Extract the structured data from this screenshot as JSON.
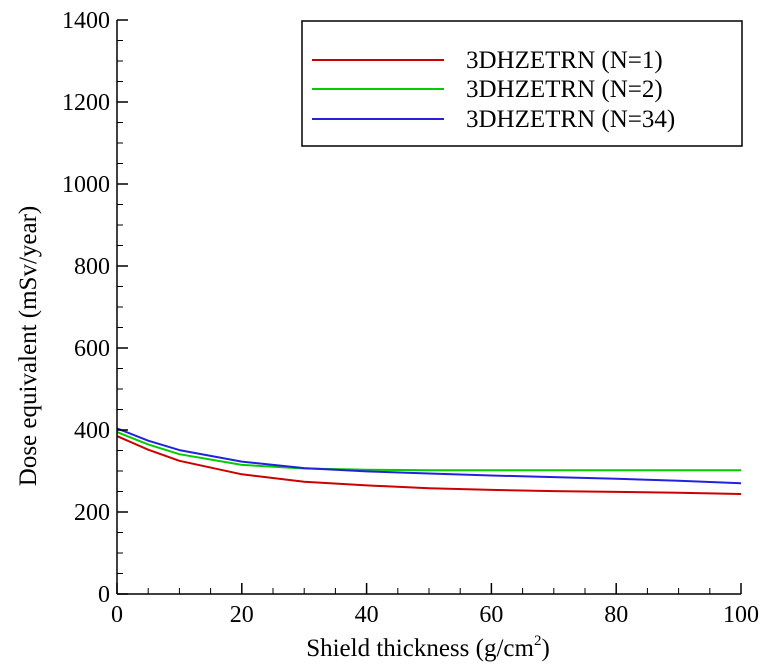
{
  "chart_data": {
    "type": "line",
    "xlabel": "Shield thickness (g/cm",
    "xlabel_sup": "2",
    "xlabel_end": ")",
    "ylabel": "Dose equivalent (mSv/year)",
    "xlim": [
      0,
      100
    ],
    "ylim": [
      0,
      1400
    ],
    "x_ticks": [
      0,
      20,
      40,
      60,
      80,
      100
    ],
    "y_ticks": [
      0,
      200,
      400,
      600,
      800,
      1000,
      1200,
      1400
    ],
    "grid": false,
    "legend_position": "top-right",
    "series": [
      {
        "name": "3DHZETRN (N=1)",
        "color": "#cc0000",
        "x": [
          0,
          5,
          10,
          20,
          30,
          40,
          50,
          60,
          70,
          80,
          90,
          100
        ],
        "y": [
          385,
          352,
          325,
          292,
          274,
          265,
          258,
          254,
          251,
          249,
          247,
          244
        ]
      },
      {
        "name": "3DHZETRN (N=2)",
        "color": "#00cc00",
        "x": [
          0,
          5,
          10,
          20,
          30,
          40,
          50,
          60,
          70,
          80,
          90,
          100
        ],
        "y": [
          395,
          365,
          341,
          315,
          306,
          303,
          302,
          302,
          302,
          302,
          302,
          302
        ]
      },
      {
        "name": "3DHZETRN (N=34)",
        "color": "#2222dd",
        "x": [
          0,
          5,
          10,
          20,
          30,
          40,
          50,
          60,
          70,
          80,
          90,
          100
        ],
        "y": [
          404,
          374,
          351,
          323,
          307,
          299,
          294,
          289,
          285,
          281,
          276,
          270
        ]
      }
    ]
  }
}
